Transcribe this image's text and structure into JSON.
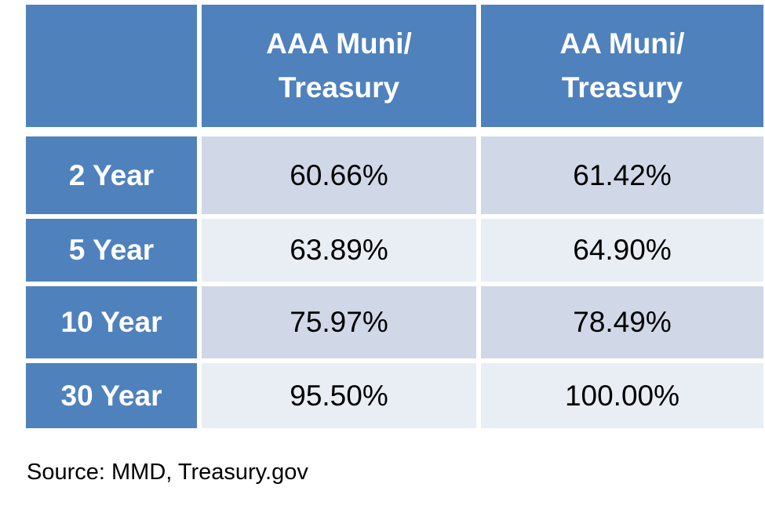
{
  "chart_data": {
    "type": "table",
    "columns": [
      "",
      "AAA Muni/\nTreasury",
      "AA Muni/\nTreasury"
    ],
    "column_lines": [
      [],
      [
        "AAA Muni/",
        "Treasury"
      ],
      [
        "AA Muni/",
        "Treasury"
      ]
    ],
    "rows": [
      {
        "label": "2 Year",
        "values": [
          "60.66%",
          "61.42%"
        ]
      },
      {
        "label": "5 Year",
        "values": [
          "63.89%",
          "64.90%"
        ]
      },
      {
        "label": "10 Year",
        "values": [
          "75.97%",
          "78.49%"
        ]
      },
      {
        "label": "30 Year",
        "values": [
          "95.50%",
          "100.00%"
        ]
      }
    ],
    "colors": {
      "header": "#4f81bd",
      "band_dark": "#d0d8e8",
      "band_light": "#e9edf4"
    }
  },
  "source": "Source: MMD, Treasury.gov"
}
